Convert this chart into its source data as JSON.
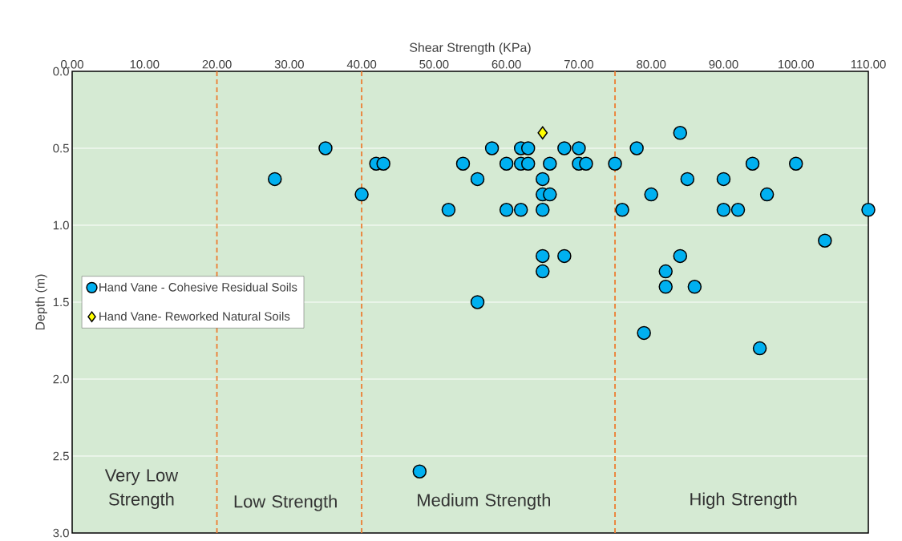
{
  "chart_data": {
    "type": "scatter",
    "xlabel": "Shear Strength (KPa)",
    "ylabel": "Depth (m)",
    "xlim": [
      0,
      110
    ],
    "ylim": [
      3.0,
      0.0
    ],
    "xticks": [
      {
        "value": 0,
        "label": "0.00"
      },
      {
        "value": 10,
        "label": "10.00"
      },
      {
        "value": 20,
        "label": "20.00"
      },
      {
        "value": 30,
        "label": "30.00"
      },
      {
        "value": 40,
        "label": "40.00"
      },
      {
        "value": 50,
        "label": "50.00"
      },
      {
        "value": 60,
        "label": "60.00"
      },
      {
        "value": 70,
        "label": "70.00"
      },
      {
        "value": 80,
        "label": "80.00"
      },
      {
        "value": 90,
        "label": "90.00"
      },
      {
        "value": 100,
        "label": "100.00"
      },
      {
        "value": 110,
        "label": "110.00"
      }
    ],
    "yticks": [
      {
        "value": 0,
        "label": "0.0"
      },
      {
        "value": 0.5,
        "label": "0.5"
      },
      {
        "value": 1,
        "label": "1.0"
      },
      {
        "value": 1.5,
        "label": "1.5"
      },
      {
        "value": 2,
        "label": "2.0"
      },
      {
        "value": 2.5,
        "label": "2.5"
      },
      {
        "value": 3,
        "label": "3.0"
      }
    ],
    "grid": "y",
    "legend": "left",
    "series": [
      {
        "name": "Hand Vane - Cohesive Residual Soils",
        "color": "#00b0f0",
        "marker": "circle",
        "x": [
          28,
          35,
          42,
          43,
          40,
          52,
          48,
          54,
          56,
          56,
          58,
          60,
          60,
          62,
          62,
          62,
          63,
          63,
          65,
          65,
          65,
          65,
          65,
          66,
          66,
          68,
          68,
          70,
          70,
          71,
          75,
          76,
          78,
          80,
          84,
          85,
          84,
          82,
          82,
          86,
          79,
          90,
          90,
          92,
          94,
          96,
          100,
          95,
          104,
          110
        ],
        "values": [
          0.7,
          0.5,
          0.6,
          0.6,
          0.8,
          0.9,
          2.6,
          0.6,
          0.7,
          1.5,
          0.5,
          0.6,
          0.9,
          0.5,
          0.6,
          0.9,
          0.5,
          0.6,
          0.7,
          0.8,
          0.9,
          1.2,
          1.3,
          0.6,
          0.8,
          0.5,
          1.2,
          0.5,
          0.6,
          0.6,
          0.6,
          0.9,
          0.5,
          0.8,
          0.4,
          0.7,
          1.2,
          1.3,
          1.4,
          1.4,
          1.7,
          0.7,
          0.9,
          0.9,
          0.6,
          0.8,
          0.6,
          1.8,
          1.1,
          0.9
        ]
      },
      {
        "name": "Hand Vane- Reworked Natural Soils",
        "color": "#ffff00",
        "marker": "diamond",
        "x": [
          65
        ],
        "values": [
          0.4
        ]
      }
    ],
    "ref_lines": [
      {
        "axis": "x",
        "value": 20,
        "color": "#ed7d31",
        "line_style": "dashed"
      },
      {
        "axis": "x",
        "value": 40,
        "color": "#ed7d31",
        "line_style": "dashed"
      },
      {
        "axis": "x",
        "value": 75,
        "color": "#ed7d31",
        "line_style": "dashed"
      }
    ],
    "annotations": [
      "Very Low Strength",
      "Low Strength",
      "Medium Strength",
      "High Strength"
    ]
  }
}
